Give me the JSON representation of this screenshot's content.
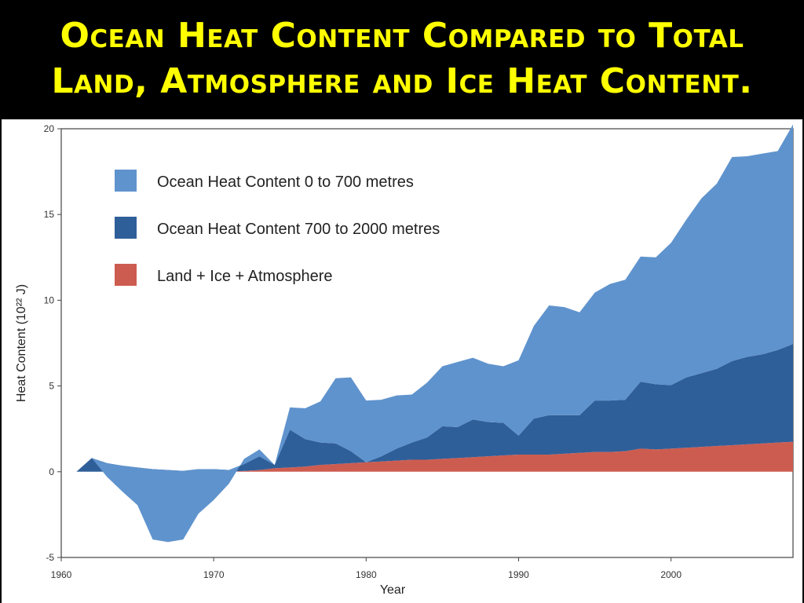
{
  "slide": {
    "title_line1": "Ocean Heat Content Compared to Total",
    "title_line2": "Land, Atmosphere and Ice Heat Content."
  },
  "chart_data": {
    "type": "area",
    "stacked": true,
    "title": "",
    "xlabel": "Year",
    "ylabel": "Heat Content (10²² J)",
    "xlim": [
      1960,
      2008
    ],
    "ylim": [
      -5,
      20
    ],
    "xticks": [
      1960,
      1970,
      1980,
      1990,
      2000
    ],
    "yticks": [
      -5,
      0,
      5,
      10,
      15,
      20
    ],
    "grid": false,
    "legend_position": "top-left",
    "x": [
      1961,
      1962,
      1963,
      1964,
      1965,
      1966,
      1967,
      1968,
      1969,
      1970,
      1971,
      1972,
      1973,
      1974,
      1975,
      1976,
      1977,
      1978,
      1979,
      1980,
      1981,
      1982,
      1983,
      1984,
      1985,
      1986,
      1987,
      1988,
      1989,
      1990,
      1991,
      1992,
      1993,
      1994,
      1995,
      1996,
      1997,
      1998,
      1999,
      2000,
      2001,
      2002,
      2003,
      2004,
      2005,
      2006,
      2007,
      2008
    ],
    "series": [
      {
        "name": "Land + Ice + Atmosphere",
        "color": "#cd5c50",
        "values": [
          0,
          0,
          0,
          0,
          0,
          0,
          0,
          0,
          0,
          0,
          0,
          0.05,
          0.1,
          0.2,
          0.25,
          0.3,
          0.4,
          0.45,
          0.5,
          0.55,
          0.6,
          0.65,
          0.7,
          0.7,
          0.75,
          0.8,
          0.85,
          0.9,
          0.95,
          1.0,
          1.0,
          1.0,
          1.05,
          1.1,
          1.15,
          1.15,
          1.2,
          1.35,
          1.3,
          1.35,
          1.4,
          1.45,
          1.5,
          1.55,
          1.6,
          1.65,
          1.7,
          1.75
        ]
      },
      {
        "name": "Ocean Heat Content 700 to 2000 metres",
        "color": "#2f5f99",
        "values": [
          0,
          0.8,
          0.5,
          0.35,
          0.25,
          0.15,
          0.1,
          0.05,
          0.15,
          0.15,
          0.1,
          0.4,
          0.8,
          0.2,
          2.2,
          1.6,
          1.3,
          1.2,
          0.7,
          0,
          0.3,
          0.7,
          1.0,
          1.3,
          1.9,
          1.8,
          2.2,
          2.0,
          1.9,
          1.1,
          2.1,
          2.3,
          2.25,
          2.2,
          3.0,
          3.0,
          3.0,
          3.9,
          3.8,
          3.7,
          4.1,
          4.3,
          4.5,
          4.9,
          5.1,
          5.2,
          5.4,
          5.7
        ]
      },
      {
        "name": "Ocean Heat Content 0 to 700 metres",
        "color": "#5f93cd",
        "values": [
          0,
          0,
          -0.8,
          -1.5,
          -2.2,
          -4.1,
          -4.2,
          -4.0,
          -2.6,
          -1.8,
          -0.8,
          0.3,
          0.4,
          0,
          1.3,
          1.8,
          2.4,
          3.8,
          4.3,
          3.6,
          3.3,
          3.1,
          2.8,
          3.2,
          3.5,
          3.8,
          3.6,
          3.4,
          3.3,
          4.4,
          5.4,
          6.4,
          6.3,
          6.0,
          6.3,
          6.8,
          7.0,
          7.3,
          7.4,
          8.3,
          9.2,
          10.2,
          10.8,
          11.9,
          11.7,
          11.7,
          11.6,
          12.8
        ]
      }
    ]
  }
}
